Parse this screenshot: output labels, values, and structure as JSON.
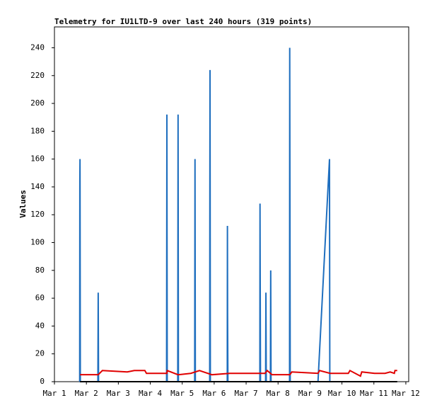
{
  "chart_data": {
    "type": "line",
    "title": "Telemetry for IU1LTD-9 over last 240 hours (319 points)",
    "y_label": "Values",
    "xlim": [
      1,
      12.09
    ],
    "xticks": [
      {
        "value": 1,
        "label": "Mar 1"
      },
      {
        "value": 2,
        "label": "Mar 2"
      },
      {
        "value": 3,
        "label": "Mar 3"
      },
      {
        "value": 4,
        "label": "Mar 4"
      },
      {
        "value": 5,
        "label": "Mar 5"
      },
      {
        "value": 6,
        "label": "Mar 6"
      },
      {
        "value": 7,
        "label": "Mar 7"
      },
      {
        "value": 8,
        "label": "Mar 8"
      },
      {
        "value": 9,
        "label": "Mar 9"
      },
      {
        "value": 10,
        "label": "Mar 10"
      },
      {
        "value": 11,
        "label": "Mar 11"
      },
      {
        "value": 12,
        "label": "Mar 12"
      }
    ],
    "ylim": [
      0,
      255
    ],
    "yticks": [
      0,
      20,
      40,
      60,
      80,
      100,
      120,
      140,
      160,
      180,
      200,
      220,
      240
    ],
    "grid": false,
    "series": [
      {
        "color": "#1f6fbf",
        "x": [
          1.79,
          1.795,
          1.8,
          1.81,
          2.36,
          2.365,
          2.37,
          2.38,
          4.51,
          4.52,
          4.53,
          4.86,
          4.87,
          4.88,
          5.39,
          5.395,
          5.4,
          5.41,
          5.86,
          5.865,
          5.87,
          5.88,
          6.41,
          6.415,
          6.42,
          6.43,
          7.43,
          7.435,
          7.44,
          7.45,
          7.61,
          7.615,
          7.62,
          7.63,
          7.76,
          7.77,
          7.78,
          8.36,
          8.365,
          8.37,
          8.38,
          9.25,
          9.61,
          9.62
        ],
        "values": [
          0,
          144,
          160,
          0,
          0,
          32,
          64,
          0,
          0,
          192,
          0,
          0,
          192,
          0,
          0,
          80,
          160,
          0,
          0,
          136,
          224,
          0,
          0,
          112,
          48,
          0,
          0,
          128,
          80,
          0,
          0,
          32,
          64,
          0,
          0,
          80,
          0,
          0,
          240,
          160,
          0,
          0,
          160,
          0
        ]
      },
      {
        "color": "#000000",
        "x": [
          1.8,
          11.73
        ],
        "values": [
          0,
          0
        ]
      },
      {
        "color": "#e00000",
        "x": [
          1.8,
          2.37,
          2.5,
          3.28,
          3.5,
          3.83,
          3.88,
          4.52,
          4.53,
          4.87,
          5.27,
          5.54,
          5.93,
          6.49,
          7.59,
          7.66,
          7.81,
          8.37,
          8.43,
          9.25,
          9.3,
          9.63,
          10.2,
          10.25,
          10.58,
          10.62,
          11.02,
          11.35,
          11.51,
          11.64,
          11.66,
          11.73
        ],
        "values": [
          5,
          5,
          8,
          7,
          8,
          8,
          6,
          6,
          8,
          5,
          6,
          8,
          5,
          6,
          6,
          8,
          5,
          5,
          7,
          6,
          8,
          6,
          6,
          8,
          4,
          7,
          6,
          6,
          7,
          6,
          8,
          8
        ]
      }
    ]
  }
}
